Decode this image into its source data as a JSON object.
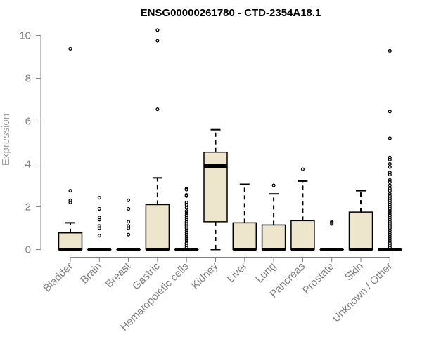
{
  "chart_data": {
    "type": "boxplot",
    "title": "ENSG00000261780 - CTD-2354A18.1",
    "xlabel": "",
    "ylabel": "Expression",
    "ylim": [
      0,
      10
    ],
    "yticks": [
      0,
      2,
      4,
      6,
      8,
      10
    ],
    "box_fill": "#ede6cc",
    "categories": [
      "Bladder",
      "Brain",
      "Breast",
      "Gastric",
      "Hematopoietic cells",
      "Kidney",
      "Liver",
      "Lung",
      "Pancreas",
      "Prostate",
      "Skin",
      "Unknown / Other"
    ],
    "boxes": [
      {
        "q1": 0,
        "median": 0,
        "q3": 0.78,
        "whisker_low": 0,
        "whisker_high": 1.25,
        "outliers": [
          9.38,
          2.75,
          2.3,
          2.2
        ]
      },
      {
        "q1": 0,
        "median": 0,
        "q3": 0,
        "whisker_low": 0,
        "whisker_high": 0,
        "outliers": [
          2.42,
          1.9,
          1.5,
          1.4,
          1.1,
          1.0,
          0.65
        ]
      },
      {
        "q1": 0,
        "median": 0,
        "q3": 0,
        "whisker_low": 0,
        "whisker_high": 0,
        "outliers": [
          2.3,
          1.9,
          1.3,
          1.1,
          1.0,
          0.7
        ]
      },
      {
        "q1": 0,
        "median": 0,
        "q3": 2.1,
        "whisker_low": 0,
        "whisker_high": 3.35,
        "outliers": [
          10.25,
          9.75,
          6.55
        ]
      },
      {
        "q1": 0,
        "median": 0,
        "q3": 0,
        "whisker_low": 0,
        "whisker_high": 0,
        "outliers": [
          2.85,
          2.8,
          2.55,
          2.5,
          2.2,
          2.1,
          1.95,
          1.8,
          1.7,
          1.6,
          1.5,
          1.4,
          1.3,
          1.2,
          1.1,
          1.0,
          0.9,
          0.8,
          0.7,
          0.6,
          0.5,
          0.4,
          0.3,
          0.2,
          0.1
        ]
      },
      {
        "q1": 1.3,
        "median": 3.9,
        "q3": 4.55,
        "whisker_low": 0,
        "whisker_high": 5.6,
        "outliers": []
      },
      {
        "q1": 0,
        "median": 0,
        "q3": 1.25,
        "whisker_low": 0,
        "whisker_high": 3.05,
        "outliers": []
      },
      {
        "q1": 0,
        "median": 0,
        "q3": 1.15,
        "whisker_low": 0,
        "whisker_high": 2.6,
        "outliers": [
          3.0
        ]
      },
      {
        "q1": 0,
        "median": 0,
        "q3": 1.35,
        "whisker_low": 0,
        "whisker_high": 3.2,
        "outliers": [
          3.75
        ]
      },
      {
        "q1": 0,
        "median": 0,
        "q3": 0,
        "whisker_low": 0,
        "whisker_high": 0,
        "outliers": [
          1.3,
          1.25,
          1.2
        ]
      },
      {
        "q1": 0,
        "median": 0,
        "q3": 1.75,
        "whisker_low": 0,
        "whisker_high": 2.75,
        "outliers": []
      },
      {
        "q1": 0,
        "median": 0,
        "q3": 0,
        "whisker_low": 0,
        "whisker_high": 0,
        "outliers": [
          9.28,
          6.45,
          5.2,
          4.3,
          4.2,
          4.0,
          3.85,
          3.6,
          3.5,
          3.25,
          3.15,
          3.0,
          2.85,
          2.75,
          2.6,
          2.5,
          2.4,
          2.3,
          2.2,
          2.1,
          2.0,
          1.9,
          1.8,
          1.7,
          1.6,
          1.5,
          1.4,
          1.3,
          1.2,
          1.1,
          1.0,
          0.9,
          0.8,
          0.7,
          0.6,
          0.5,
          0.4,
          0.3,
          0.2,
          0.1
        ]
      }
    ]
  }
}
